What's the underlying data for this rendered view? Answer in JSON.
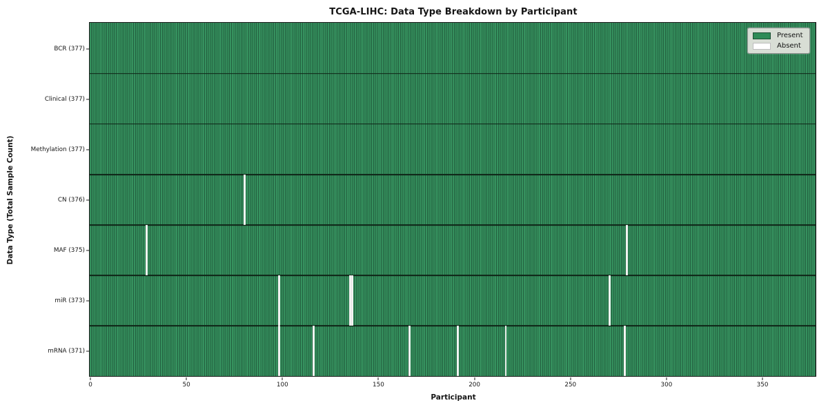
{
  "chart_data": {
    "type": "heatmap",
    "title": "TCGA-LIHC: Data Type Breakdown by Participant",
    "xlabel": "Participant",
    "ylabel": "Data Type (Total Sample Count)",
    "x_ticks": [
      0,
      50,
      100,
      150,
      200,
      250,
      300,
      350
    ],
    "xlim": [
      0,
      378
    ],
    "total_participants": 377,
    "grid": false,
    "colors": {
      "present": "#2e8b57",
      "present_stripe_dark": "#225e3e",
      "absent": "#ffffff",
      "row_separator": "#0f2316",
      "legend_background": "#d8ded5"
    },
    "rows": [
      {
        "label": "BCR (377)",
        "data_type": "BCR",
        "present_count": 377,
        "absent_participants": []
      },
      {
        "label": "Clinical (377)",
        "data_type": "Clinical",
        "present_count": 377,
        "absent_participants": []
      },
      {
        "label": "Methylation (377)",
        "data_type": "Methylation",
        "present_count": 377,
        "absent_participants": []
      },
      {
        "label": "CN (376)",
        "data_type": "CN",
        "present_count": 376,
        "absent_participants": [
          80
        ]
      },
      {
        "label": "MAF (375)",
        "data_type": "MAF",
        "present_count": 375,
        "absent_participants": [
          29,
          279
        ]
      },
      {
        "label": "miR (373)",
        "data_type": "miR",
        "present_count": 373,
        "absent_participants": [
          98,
          135,
          136,
          270
        ]
      },
      {
        "label": "mRNA (371)",
        "data_type": "mRNA",
        "present_count": 371,
        "absent_participants": [
          98,
          116,
          166,
          191,
          216,
          278
        ]
      }
    ],
    "legend": {
      "position": "upper right",
      "entries": [
        {
          "label": "Present",
          "color": "#2e8b57",
          "edge": "#1c4f33"
        },
        {
          "label": "Absent",
          "color": "#ffffff",
          "edge": "#bdbdbd"
        }
      ]
    }
  }
}
